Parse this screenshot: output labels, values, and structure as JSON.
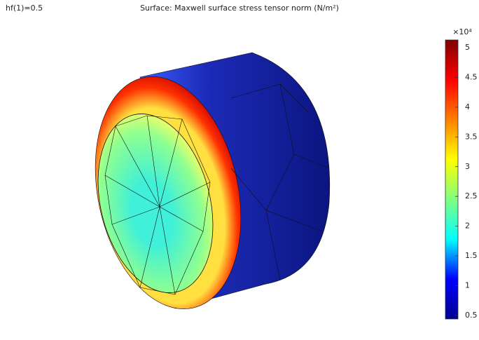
{
  "chart_data": {
    "type": "surface",
    "parameter_label": "hf(1)=0.5",
    "title": "Surface: Maxwell surface stress tensor norm (N/m²)",
    "colorbar": {
      "multiplier": "×10⁴",
      "clim": [
        0.44,
        5.13
      ],
      "ticks": [
        0.5,
        1,
        1.5,
        2,
        2.5,
        3,
        3.5,
        4,
        4.5,
        5
      ],
      "colormap": [
        "#00008f",
        "#0000ff",
        "#00ffff",
        "#80ff80",
        "#ffff00",
        "#ff8000",
        "#ff0000",
        "#800000"
      ]
    }
  }
}
